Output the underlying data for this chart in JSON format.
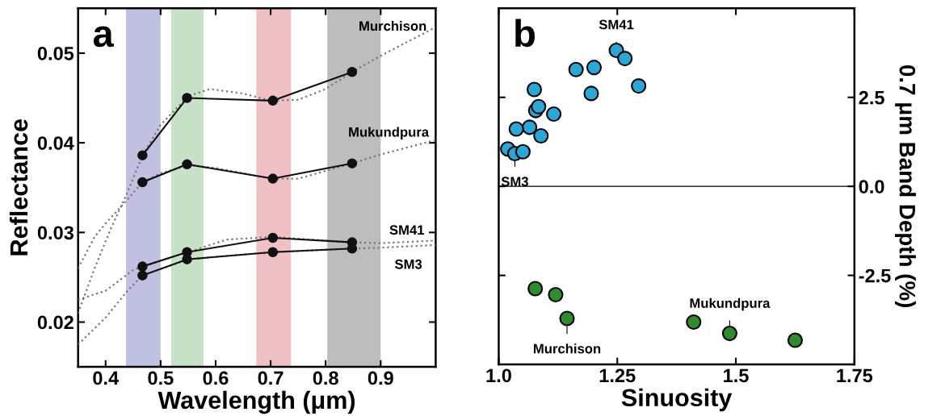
{
  "chart_data": [
    {
      "type": "line",
      "title": "a",
      "xlabel": "Wavelength (μm)",
      "ylabel": "Reflectance",
      "xlim": [
        0.35,
        1.0
      ],
      "xticks": [
        0.4,
        0.5,
        0.6,
        0.7,
        0.8,
        0.9
      ],
      "ylim": [
        0.015,
        0.055
      ],
      "yticks": [
        0.02,
        0.03,
        0.04,
        0.05
      ],
      "grid": false,
      "legend": false,
      "bands": [
        {
          "axis": "x",
          "from": 0.437,
          "to": 0.5,
          "color": "#c0c0e0"
        },
        {
          "axis": "x",
          "from": 0.519,
          "to": 0.578,
          "color": "#c8e2c8"
        },
        {
          "axis": "x",
          "from": 0.674,
          "to": 0.737,
          "color": "#efc0c4"
        },
        {
          "axis": "x",
          "from": 0.803,
          "to": 0.9,
          "color": "#bdbdbd"
        }
      ],
      "series": [
        {
          "color": "#777777",
          "line_style": "dotted",
          "marker": "none",
          "x": [
            0.35,
            0.38,
            0.41,
            0.44,
            0.467,
            0.5,
            0.55,
            0.59,
            0.65,
            0.7,
            0.75,
            0.8,
            0.848,
            0.9,
            0.95,
            1.0
          ],
          "values": [
            0.021,
            0.026,
            0.0305,
            0.0345,
            0.0386,
            0.042,
            0.0452,
            0.046,
            0.0455,
            0.0447,
            0.0448,
            0.046,
            0.0479,
            0.0497,
            0.0513,
            0.0529
          ]
        },
        {
          "color": "#777777",
          "line_style": "dotted",
          "marker": "none",
          "x": [
            0.35,
            0.38,
            0.4,
            0.44,
            0.467,
            0.5,
            0.55,
            0.6,
            0.7,
            0.75,
            0.848,
            0.9,
            1.0
          ],
          "values": [
            0.026,
            0.0295,
            0.031,
            0.0337,
            0.0356,
            0.0366,
            0.0375,
            0.0372,
            0.036,
            0.036,
            0.0377,
            0.0387,
            0.0403
          ]
        },
        {
          "color": "#777777",
          "line_style": "dotted",
          "marker": "none",
          "x": [
            0.35,
            0.4,
            0.45,
            0.467,
            0.55,
            0.62,
            0.7,
            0.8,
            0.848,
            0.9,
            1.0
          ],
          "values": [
            0.0225,
            0.0235,
            0.0258,
            0.0262,
            0.0278,
            0.0292,
            0.0295,
            0.0291,
            0.0289,
            0.0288,
            0.0291
          ]
        },
        {
          "color": "#777777",
          "line_style": "dotted",
          "marker": "none",
          "x": [
            0.35,
            0.4,
            0.44,
            0.467,
            0.55,
            0.7,
            0.848,
            0.9,
            1.0
          ],
          "values": [
            0.0175,
            0.0205,
            0.0235,
            0.0252,
            0.027,
            0.0278,
            0.0282,
            0.0283,
            0.0286
          ]
        },
        {
          "name": "Murchison",
          "color": "#111111",
          "line_style": "solid",
          "marker": "circle",
          "x": [
            0.467,
            0.548,
            0.704,
            0.848
          ],
          "values": [
            0.0386,
            0.045,
            0.0447,
            0.0479
          ]
        },
        {
          "name": "Mukundpura",
          "color": "#111111",
          "line_style": "solid",
          "marker": "circle",
          "x": [
            0.467,
            0.548,
            0.704,
            0.848
          ],
          "values": [
            0.0356,
            0.0376,
            0.036,
            0.0377
          ]
        },
        {
          "name": "SM41",
          "color": "#111111",
          "line_style": "solid",
          "marker": "circle",
          "x": [
            0.467,
            0.548,
            0.704,
            0.848
          ],
          "values": [
            0.0262,
            0.0278,
            0.0294,
            0.0289
          ]
        },
        {
          "name": "SM3",
          "color": "#111111",
          "line_style": "solid",
          "marker": "circle",
          "x": [
            0.467,
            0.548,
            0.704,
            0.848
          ],
          "values": [
            0.0252,
            0.027,
            0.0278,
            0.0282
          ]
        }
      ]
    },
    {
      "type": "scatter",
      "title": "b",
      "xlabel": "Sinuosity",
      "y2label": "0.7 μm Band Depth (%)",
      "xlim": [
        1.0,
        1.75
      ],
      "xticks": [
        {
          "value": 1.0,
          "label": "1.0"
        },
        1.25,
        1.5,
        1.75
      ],
      "ylim": [
        -5,
        5
      ],
      "yticks": [
        {
          "value": -2.5,
          "label": "-2.5"
        },
        {
          "value": 0,
          "label": "0.0"
        },
        2.5
      ],
      "grid": false,
      "legend": false,
      "marker": "circle",
      "ref_lines": [
        {
          "axis": "y",
          "value": 0,
          "color": "#000000"
        }
      ],
      "annotations": [
        {
          "text": "SM41",
          "x": 1.248,
          "y": 3.82
        },
        {
          "text": "SM3",
          "x": 1.034,
          "y": 0.92
        },
        {
          "text": "Murchison",
          "x": 1.144,
          "y": -3.71
        },
        {
          "text": "Mukundpura",
          "x": 1.487,
          "y": -4.13
        }
      ],
      "series": [
        {
          "color": "#29a8d8",
          "x": [
            1.248,
            1.266,
            1.163,
            1.201,
            1.295,
            1.195,
            1.075,
            1.078,
            1.084,
            1.116,
            1.065,
            1.037,
            1.089,
            1.019,
            1.034,
            1.051
          ],
          "values": [
            3.82,
            3.59,
            3.28,
            3.34,
            2.82,
            2.61,
            2.72,
            2.13,
            2.24,
            2.03,
            1.66,
            1.61,
            1.42,
            1.05,
            0.92,
            0.97
          ]
        },
        {
          "color": "#2e8b2e",
          "x": [
            1.077,
            1.12,
            1.144,
            1.411,
            1.487,
            1.625
          ],
          "values": [
            -2.87,
            -3.04,
            -3.71,
            -3.81,
            -4.13,
            -4.32
          ]
        }
      ]
    }
  ]
}
